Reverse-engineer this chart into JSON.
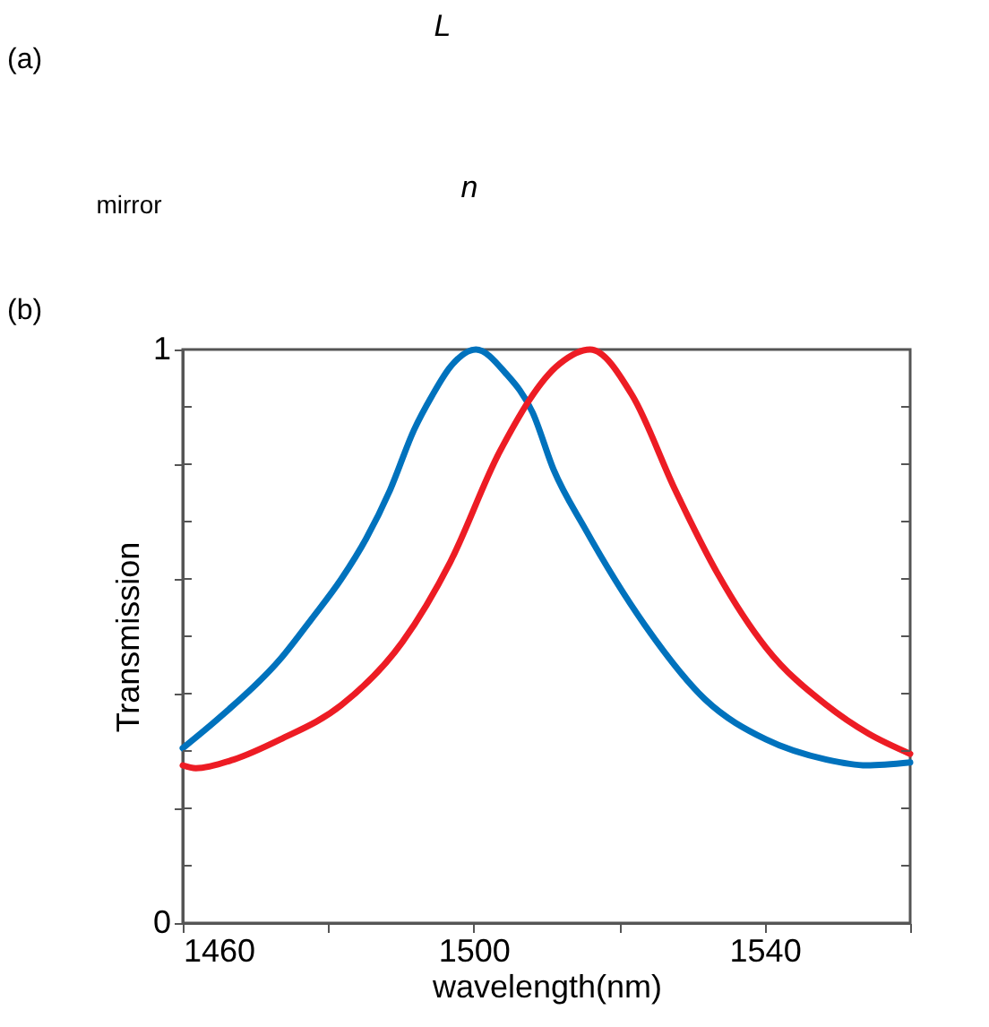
{
  "chart_data": {
    "type": "line",
    "xlabel": "wavelength(nm)",
    "ylabel": "Transmission",
    "annotations": [
      "(a)",
      "L",
      "n",
      "mirror",
      "(b)"
    ],
    "xlim": [
      1460,
      1560
    ],
    "xticks": [
      1460,
      {
        "value": 1480,
        "label": null
      },
      1500,
      {
        "value": 1520,
        "label": null
      },
      1540,
      {
        "value": 1560,
        "label": null
      }
    ],
    "ylim": [
      0,
      1
    ],
    "yticks": [
      0,
      {
        "value": 0.1,
        "label": null
      },
      {
        "value": 0.2,
        "label": null
      },
      {
        "value": 0.3,
        "label": null
      },
      {
        "value": 0.4,
        "label": null
      },
      {
        "value": 0.5,
        "label": null
      },
      {
        "value": 0.6,
        "label": null
      },
      {
        "value": 0.7,
        "label": null
      },
      {
        "value": 0.8,
        "label": null
      },
      {
        "value": 0.9,
        "label": null
      },
      1
    ],
    "grid": false,
    "legend": false,
    "marker": "none",
    "line_style": "solid",
    "series": [
      {
        "color": "#0072bd",
        "x": [
          1460,
          1465.2,
          1473.4,
          1477.7,
          1481.8,
          1485.2,
          1488.5,
          1491.8,
          1494.3,
          1496.8,
          1500.3,
          1504.3,
          1508.1,
          1511,
          1515.2,
          1523.5,
          1531.8,
          1540.2,
          1548.5,
          1554,
          1560
        ],
        "values": [
          0.305,
          0.36,
          0.46,
          0.53,
          0.6,
          0.67,
          0.755,
          0.86,
          0.92,
          0.97,
          1.0,
          0.96,
          0.89,
          0.79,
          0.69,
          0.52,
          0.39,
          0.32,
          0.285,
          0.275,
          0.28
        ]
      },
      {
        "color": "#ed1c24",
        "x": [
          1460,
          1461.8,
          1467,
          1473.4,
          1481.8,
          1490.2,
          1496.8,
          1503.5,
          1511.8,
          1516,
          1521.8,
          1527.7,
          1533.5,
          1540.2,
          1548.5,
          1554.3,
          1560
        ],
        "values": [
          0.275,
          0.27,
          0.285,
          0.32,
          0.38,
          0.49,
          0.63,
          0.82,
          0.975,
          1.0,
          0.92,
          0.755,
          0.61,
          0.48,
          0.38,
          0.33,
          0.295
        ]
      }
    ]
  }
}
